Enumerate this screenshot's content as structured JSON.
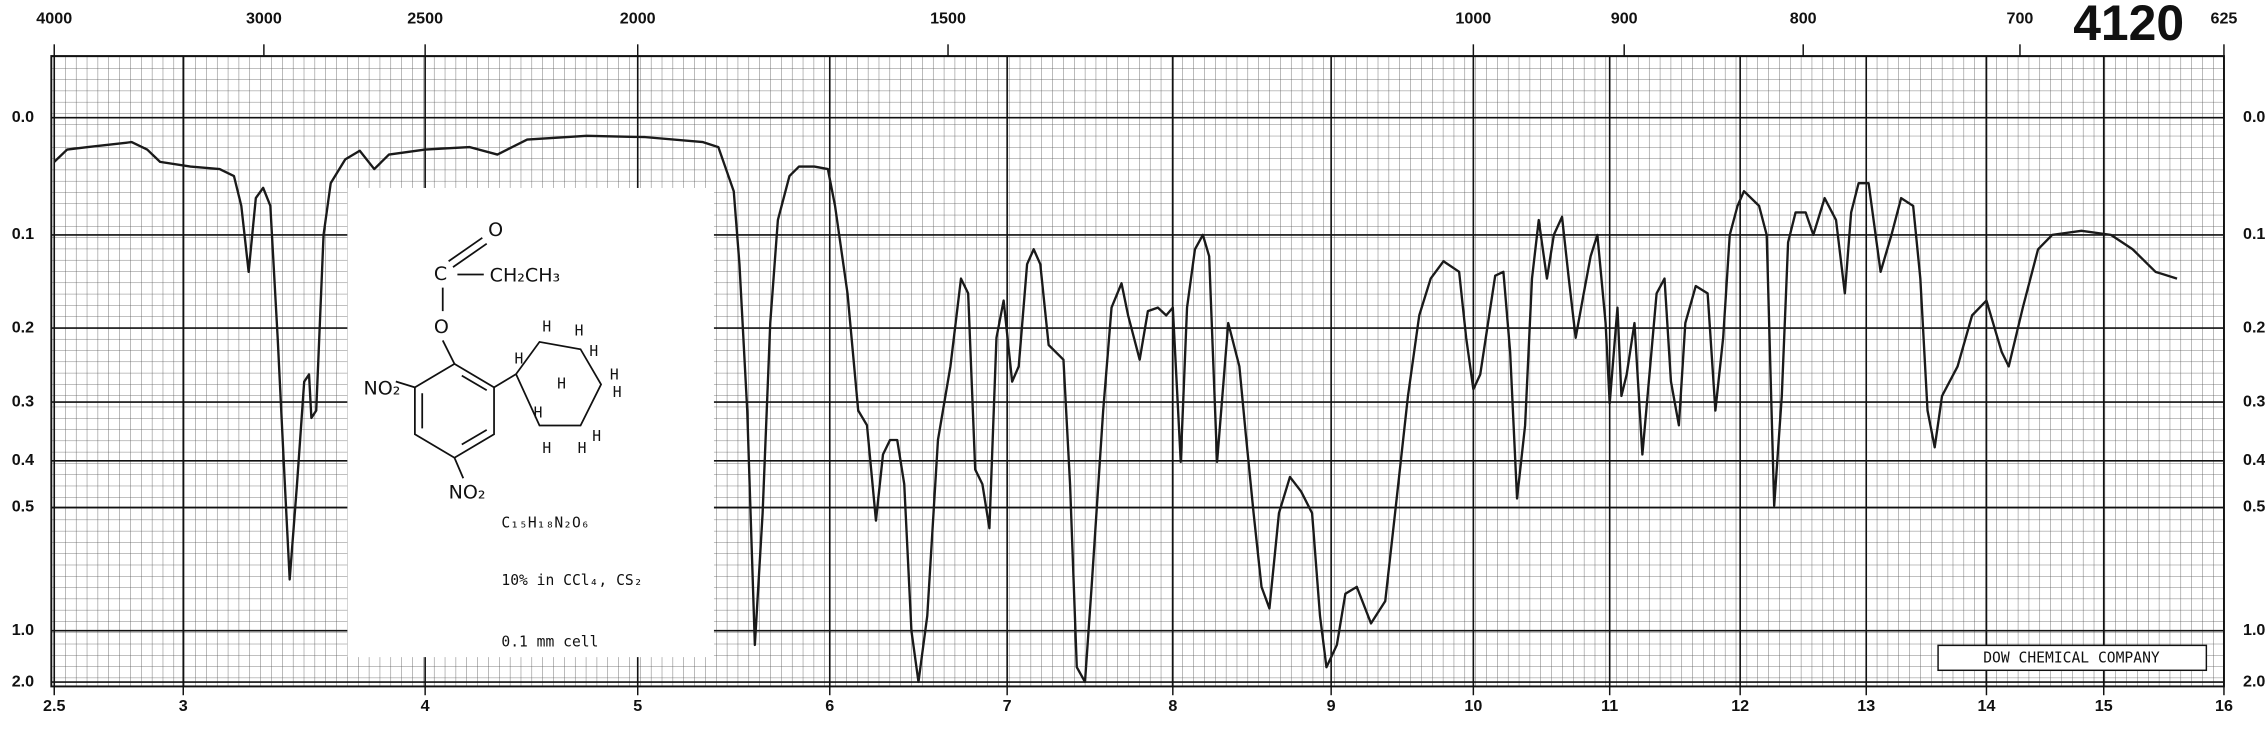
{
  "chart_data": {
    "type": "line",
    "catalog_number": "4120",
    "company": "DOW CHEMICAL COMPANY",
    "color": "#1a1a1a",
    "y_scale": "absorbance",
    "grid": true,
    "xlim": [
      2.5,
      16
    ],
    "xticks": [
      2.5,
      3,
      4,
      5,
      6,
      7,
      8,
      9,
      10,
      11,
      12,
      13,
      14,
      15,
      16
    ],
    "x2ticks": [
      4000,
      3000,
      2500,
      2000,
      1500,
      1000,
      900,
      800,
      700,
      625
    ],
    "ylim": [
      -0.045,
      2
    ],
    "yticks": [
      {
        "value": 0,
        "label": "0.0"
      },
      0.1,
      0.2,
      0.3,
      0.4,
      0.5,
      {
        "value": 1,
        "label": "1.0"
      },
      {
        "value": 2,
        "label": "2.0"
      }
    ],
    "x": [
      2.5,
      2.55,
      2.63,
      2.8,
      2.86,
      2.91,
      3.03,
      3.15,
      3.21,
      3.24,
      3.27,
      3.3,
      3.33,
      3.36,
      3.39,
      3.42,
      3.44,
      3.47,
      3.5,
      3.52,
      3.53,
      3.55,
      3.58,
      3.61,
      3.67,
      3.73,
      3.79,
      3.85,
      4.0,
      4.21,
      4.34,
      4.48,
      4.76,
      5.04,
      5.34,
      5.42,
      5.5,
      5.53,
      5.57,
      5.61,
      5.65,
      5.69,
      5.73,
      5.79,
      5.84,
      5.92,
      5.99,
      6.03,
      6.1,
      6.16,
      6.21,
      6.26,
      6.3,
      6.34,
      6.38,
      6.42,
      6.46,
      6.5,
      6.55,
      6.61,
      6.68,
      6.74,
      6.78,
      6.82,
      6.86,
      6.9,
      6.94,
      6.98,
      7.03,
      7.07,
      7.12,
      7.16,
      7.2,
      7.25,
      7.34,
      7.38,
      7.42,
      7.47,
      7.51,
      7.58,
      7.63,
      7.69,
      7.73,
      7.8,
      7.85,
      7.91,
      7.96,
      8.0,
      8.05,
      8.09,
      8.14,
      8.19,
      8.23,
      8.28,
      8.35,
      8.42,
      8.46,
      8.51,
      8.56,
      8.61,
      8.67,
      8.74,
      8.81,
      8.88,
      8.93,
      8.97,
      9.04,
      9.1,
      9.18,
      9.28,
      9.38,
      9.45,
      9.54,
      9.62,
      9.7,
      9.79,
      9.9,
      9.95,
      10.0,
      10.05,
      10.16,
      10.22,
      10.27,
      10.32,
      10.38,
      10.43,
      10.48,
      10.54,
      10.59,
      10.65,
      10.7,
      10.75,
      10.81,
      10.86,
      10.91,
      10.97,
      11.0,
      11.06,
      11.09,
      11.13,
      11.19,
      11.25,
      11.3,
      11.36,
      11.42,
      11.47,
      11.53,
      11.58,
      11.66,
      11.75,
      11.81,
      11.87,
      11.92,
      11.98,
      12.03,
      12.15,
      12.21,
      12.27,
      12.33,
      12.38,
      12.44,
      12.52,
      12.58,
      12.67,
      12.76,
      12.83,
      12.88,
      12.94,
      13.02,
      13.12,
      13.21,
      13.29,
      13.39,
      13.45,
      13.51,
      13.57,
      13.63,
      13.76,
      13.88,
      14.0,
      14.13,
      14.19,
      14.31,
      14.44,
      14.56,
      14.81,
      15.06,
      15.24,
      15.43,
      15.61
    ],
    "values": [
      0.035,
      0.025,
      0.023,
      0.019,
      0.025,
      0.035,
      0.039,
      0.041,
      0.047,
      0.073,
      0.137,
      0.066,
      0.057,
      0.073,
      0.212,
      0.447,
      0.721,
      0.447,
      0.27,
      0.26,
      0.325,
      0.313,
      0.1,
      0.053,
      0.033,
      0.026,
      0.041,
      0.029,
      0.025,
      0.023,
      0.029,
      0.017,
      0.014,
      0.015,
      0.019,
      0.023,
      0.06,
      0.129,
      0.313,
      1.125,
      0.514,
      0.194,
      0.086,
      0.047,
      0.039,
      0.039,
      0.041,
      0.073,
      0.16,
      0.313,
      0.337,
      0.533,
      0.388,
      0.362,
      0.362,
      0.447,
      1.0,
      1.99,
      0.9,
      0.362,
      0.249,
      0.144,
      0.16,
      0.417,
      0.447,
      0.553,
      0.212,
      0.168,
      0.27,
      0.249,
      0.129,
      0.114,
      0.129,
      0.221,
      0.24,
      0.447,
      1.444,
      1.99,
      0.752,
      0.313,
      0.176,
      0.149,
      0.185,
      0.24,
      0.18,
      0.176,
      0.185,
      0.176,
      0.402,
      0.176,
      0.114,
      0.1,
      0.121,
      0.402,
      0.194,
      0.249,
      0.35,
      0.514,
      0.752,
      0.857,
      0.514,
      0.432,
      0.463,
      0.514,
      0.9,
      1.444,
      1.125,
      0.783,
      0.752,
      0.947,
      0.818,
      0.514,
      0.291,
      0.185,
      0.144,
      0.126,
      0.137,
      0.212,
      0.281,
      0.26,
      0.141,
      0.137,
      0.23,
      0.479,
      0.337,
      0.144,
      0.086,
      0.144,
      0.1,
      0.083,
      0.144,
      0.212,
      0.16,
      0.121,
      0.1,
      0.194,
      0.302,
      0.176,
      0.291,
      0.26,
      0.194,
      0.388,
      0.27,
      0.16,
      0.144,
      0.27,
      0.337,
      0.194,
      0.152,
      0.16,
      0.313,
      0.212,
      0.1,
      0.073,
      0.06,
      0.073,
      0.1,
      0.496,
      0.291,
      0.107,
      0.079,
      0.079,
      0.1,
      0.066,
      0.086,
      0.16,
      0.079,
      0.053,
      0.053,
      0.137,
      0.1,
      0.066,
      0.073,
      0.144,
      0.313,
      0.375,
      0.291,
      0.249,
      0.185,
      0.168,
      0.23,
      0.249,
      0.176,
      0.114,
      0.1,
      0.096,
      0.1,
      0.114,
      0.137,
      0.144
    ],
    "inset": {
      "carbonyl_o": "O",
      "carbonyl_c": "C",
      "ethyl": "CH₂CH₃",
      "ester_o": "O",
      "nitro_labels": [
        "NO₂",
        "NO₂"
      ],
      "h_labels": [
        "H",
        "H",
        "H",
        "H",
        "H",
        "H",
        "H",
        "H",
        "H",
        "H",
        "H"
      ],
      "formula": "C₁₅H₁₈N₂O₆",
      "solvent": "10% in CCl₄, CS₂",
      "cell": "0.1 mm cell"
    }
  }
}
